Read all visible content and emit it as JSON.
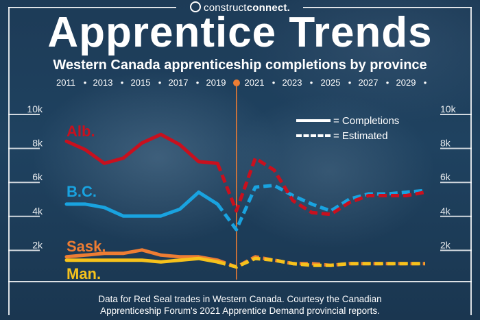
{
  "brand": {
    "name_part1": "construct",
    "name_part2": "connect."
  },
  "header": {
    "title": "Apprentice Trends",
    "subtitle": "Western Canada apprenticeship completions by province"
  },
  "legend": {
    "completions": "= Completions",
    "estimated": "= Estimated"
  },
  "footer": {
    "line1": "Data for Red Seal trades in Western Canada. Courtesy the Canadian",
    "line2": "Apprenticeship Forum's 2021 Apprentice Demand provincial reports."
  },
  "colors": {
    "alb": "#c8101e",
    "bc": "#19a3e0",
    "sask": "#ee7d33",
    "man": "#f6c21c",
    "marker": "#ee7d33",
    "frame": "#ffffff"
  },
  "chart_data": {
    "type": "line",
    "title": "Apprentice Trends",
    "subtitle": "Western Canada apprenticeship completions by province",
    "x_tick_labels": [
      "2011",
      "2013",
      "2015",
      "2017",
      "2019",
      "2021",
      "2023",
      "2025",
      "2027",
      "2029"
    ],
    "y_tick_labels": [
      "10k",
      "8k",
      "6k",
      "4k",
      "2k"
    ],
    "ylim": [
      0,
      10000
    ],
    "xlim": [
      2011,
      2030
    ],
    "marker_year": 2020,
    "actual_through": 2019,
    "grid": false,
    "legend_position": "top-right",
    "series": [
      {
        "name": "Alb.",
        "x": [
          2011,
          2012,
          2013,
          2014,
          2015,
          2016,
          2017,
          2018,
          2019,
          2020,
          2021,
          2022,
          2023,
          2024,
          2025,
          2026,
          2027,
          2028,
          2029,
          2030
        ],
        "values": [
          8100,
          7600,
          6800,
          7100,
          8000,
          8500,
          7900,
          6900,
          6800,
          4000,
          7100,
          6400,
          4600,
          3900,
          3800,
          4500,
          4900,
          4900,
          4900,
          5100
        ]
      },
      {
        "name": "B.C.",
        "x": [
          2011,
          2012,
          2013,
          2014,
          2015,
          2016,
          2017,
          2018,
          2019,
          2020,
          2021,
          2022,
          2023,
          2024,
          2025,
          2026,
          2027,
          2028,
          2029,
          2030
        ],
        "values": [
          4400,
          4400,
          4200,
          3700,
          3700,
          3700,
          4100,
          5100,
          4400,
          2900,
          5400,
          5500,
          4900,
          4400,
          4000,
          4700,
          5000,
          5000,
          5100,
          5200
        ]
      },
      {
        "name": "Sask.",
        "x": [
          2011,
          2012,
          2013,
          2014,
          2015,
          2016,
          2017,
          2018,
          2019,
          2020,
          2021,
          2022,
          2023,
          2024,
          2025,
          2026,
          2027,
          2028,
          2029,
          2030
        ],
        "values": [
          1300,
          1400,
          1500,
          1500,
          1700,
          1400,
          1300,
          1300,
          1100,
          700,
          1300,
          1100,
          900,
          900,
          800,
          900,
          900,
          900,
          900,
          900
        ]
      },
      {
        "name": "Man.",
        "x": [
          2011,
          2012,
          2013,
          2014,
          2015,
          2016,
          2017,
          2018,
          2019,
          2020,
          2021,
          2022,
          2023,
          2024,
          2025,
          2026,
          2027,
          2028,
          2029,
          2030
        ],
        "values": [
          1100,
          1100,
          1100,
          1100,
          1100,
          1000,
          1100,
          1200,
          1000,
          700,
          1200,
          1100,
          900,
          800,
          800,
          900,
          900,
          900,
          900,
          900
        ]
      }
    ]
  }
}
